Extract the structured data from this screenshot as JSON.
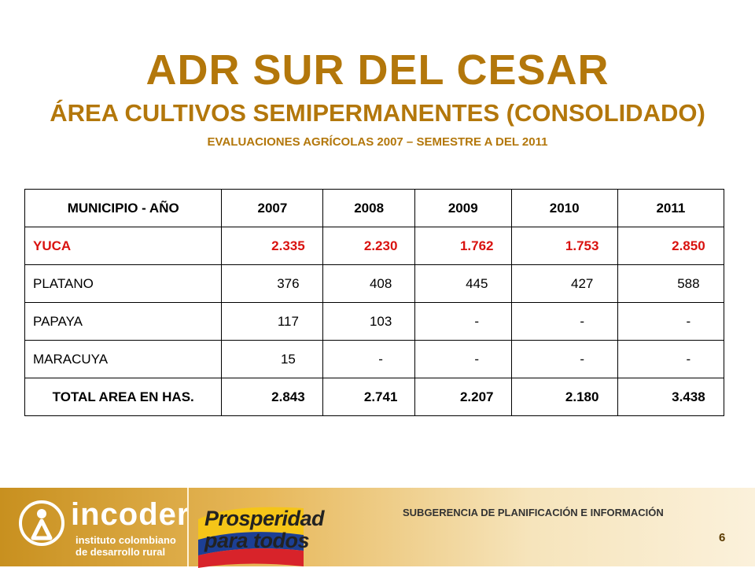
{
  "header": {
    "title": "ADR SUR DEL CESAR",
    "subtitle": "ÁREA CULTIVOS SEMIPERMANENTES (CONSOLIDADO)",
    "subsubtitle": "EVALUACIONES AGRÍCOLAS 2007 – SEMESTRE A DEL 2011"
  },
  "table": {
    "headers": [
      "MUNICIPIO - AÑO",
      "2007",
      "2008",
      "2009",
      "2010",
      "2011"
    ],
    "rows": [
      [
        "YUCA",
        "2.335",
        "2.230",
        "1.762",
        "1.753",
        "2.850"
      ],
      [
        "PLATANO",
        "376",
        "408",
        "445",
        "427",
        "588"
      ],
      [
        "PAPAYA",
        "117",
        "103",
        "-",
        "-",
        "-"
      ],
      [
        "MARACUYA",
        "15",
        "-",
        "-",
        "-",
        "-"
      ],
      [
        "TOTAL AREA EN HAS.",
        "2.843",
        "2.741",
        "2.207",
        "2.180",
        "3.438"
      ]
    ],
    "highlight_color": "#d9120f"
  },
  "footer": {
    "incoder_name": "incoder",
    "incoder_sub1": "instituto colombiano",
    "incoder_sub2": "de desarrollo rural",
    "prosperidad_line1": "Prosperidad",
    "prosperidad_line2": "para todos",
    "subgerencia": "SUBGERENCIA DE PLANIFICACIÓN E INFORMACIÓN",
    "page_number": "6"
  },
  "colors": {
    "title": "#b3770b",
    "footer_gold": "#c8901f"
  }
}
